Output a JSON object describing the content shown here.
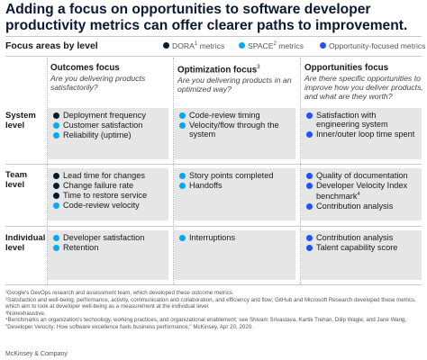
{
  "title": "Adding a focus on opportunities to software developer productivity metrics can offer clearer paths to improvement.",
  "subhead": "Focus areas by level",
  "colors": {
    "dora": "#051c2c",
    "space": "#00a9f4",
    "opportunity": "#2251ff"
  },
  "legend": {
    "dora": {
      "label": "DORA",
      "sup": "1",
      "suffix": " metrics",
      "icon": "dot-dora"
    },
    "space": {
      "label": "SPACE",
      "sup": "2",
      "suffix": " metrics",
      "icon": "dot-space"
    },
    "opportunity": {
      "label": "Opportunity-focused metrics",
      "icon": "dot-opportunity"
    }
  },
  "columns": [
    {
      "title": "Outcomes focus",
      "sup": "",
      "question": "Are you delivering products satisfactorily?"
    },
    {
      "title": "Optimization focus",
      "sup": "3",
      "question": "Are you delivering products in an optimized way?"
    },
    {
      "title": "Opportunities focus",
      "sup": "",
      "question": "Are there specific opportunities to improve how you deliver products, and what are they worth?"
    }
  ],
  "rows": [
    {
      "label": "System level"
    },
    {
      "label": "Team level"
    },
    {
      "label": "Individual level"
    }
  ],
  "cells": {
    "r0c0": [
      {
        "text": "Deployment frequency",
        "type": "dora"
      },
      {
        "text": "Customer satisfaction",
        "type": "space"
      },
      {
        "text": "Reliability (uptime)",
        "type": "space"
      }
    ],
    "r0c1": [
      {
        "text": "Code-review timing",
        "type": "space"
      },
      {
        "text": "Velocity/flow through the system",
        "type": "space"
      }
    ],
    "r0c2": [
      {
        "text": "Satisfaction with engineering system",
        "type": "opportunity"
      },
      {
        "text": "Inner/outer loop time spent",
        "type": "opportunity"
      }
    ],
    "r1c0": [
      {
        "text": "Lead time for changes",
        "type": "dora"
      },
      {
        "text": "Change failure rate",
        "type": "dora"
      },
      {
        "text": "Time to restore service",
        "type": "dora"
      },
      {
        "text": "Code-review velocity",
        "type": "space"
      }
    ],
    "r1c1": [
      {
        "text": "Story points completed",
        "type": "space"
      },
      {
        "text": "Handoffs",
        "type": "space"
      }
    ],
    "r1c2": [
      {
        "text": "Quality of documentation",
        "type": "opportunity"
      },
      {
        "text": "Developer Velocity Index benchmark",
        "sup": "4",
        "type": "opportunity"
      },
      {
        "text": "Contribution analysis",
        "type": "opportunity"
      }
    ],
    "r2c0": [
      {
        "text": "Developer satisfaction",
        "type": "space"
      },
      {
        "text": "Retention",
        "type": "space"
      }
    ],
    "r2c1": [
      {
        "text": "Interruptions",
        "type": "space"
      }
    ],
    "r2c2": [
      {
        "text": "Contribution analysis",
        "type": "opportunity"
      },
      {
        "text": "Talent capability score",
        "type": "opportunity"
      }
    ]
  },
  "footnotes": [
    "¹Google's DevOps research and assessment team, which developed these outcome metrics.",
    "²Satisfaction and well-being, performance, activity, communication and collaboration, and efficiency and flow; GitHub and Microsoft Research developed these metrics, which aim to look at developer well-being as a measurement at the individual level.",
    "³Nonexhaustive.",
    "⁴Benchmarks an organization's technology, working practices, and organizational enablement; see Shivam Srivastava, Kartik Trehan, Dilip Wagle, and Jane Wang, \"Developer Velocity: How software excellence fuels business performance,\" McKinsey, Apr 20, 2020."
  ],
  "source": "McKinsey & Company"
}
